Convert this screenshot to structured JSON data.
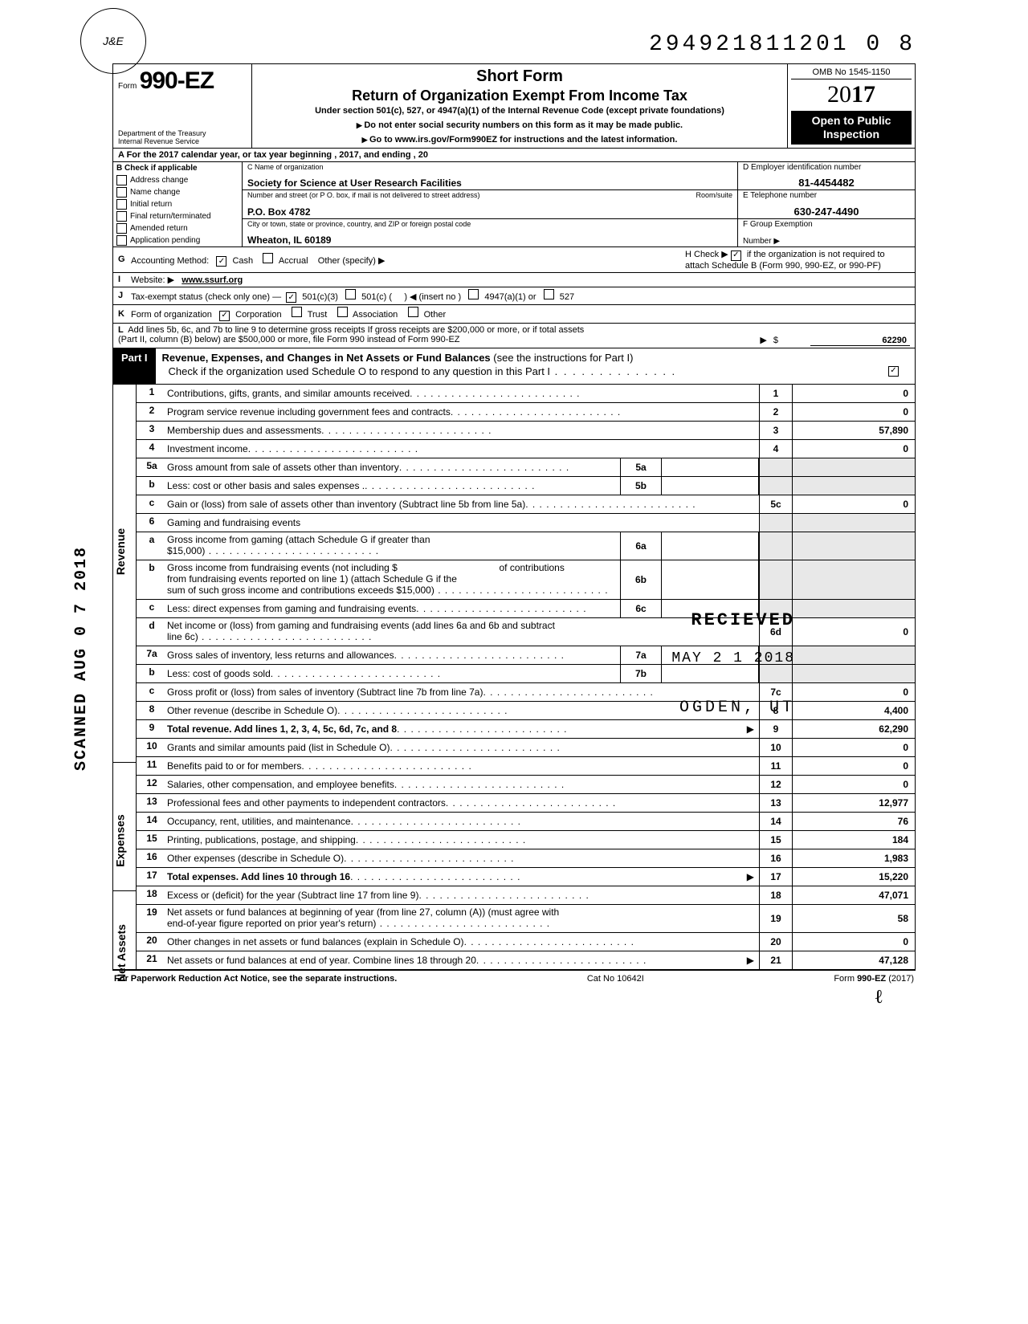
{
  "top_number": "294921811201 0",
  "top_number_trail": "8",
  "logo_text": "J&E",
  "header": {
    "form_word": "Form",
    "form_name": "990-EZ",
    "dept1": "Department of the Treasury",
    "dept2": "Internal Revenue Service",
    "title1": "Short Form",
    "title2": "Return of Organization Exempt From Income Tax",
    "subtitle": "Under section 501(c), 527, or 4947(a)(1) of the Internal Revenue Code (except private foundations)",
    "note1": "Do not enter social security numbers on this form as it may be made public.",
    "note2": "Go to www.irs.gov/Form990EZ for instructions and the latest information.",
    "omb": "OMB No 1545-1150",
    "year_prefix": "20",
    "year_bold": "17",
    "open_pub1": "Open to Public",
    "open_pub2": "Inspection"
  },
  "sectionA": "A  For the 2017 calendar year, or tax year beginning                                                    , 2017, and ending                                    , 20",
  "colB": {
    "title": "B  Check if applicable",
    "items": [
      "Address change",
      "Name change",
      "Initial return",
      "Final return/terminated",
      "Amended return",
      "Application pending"
    ]
  },
  "colC": {
    "c_label": "C  Name of organization",
    "c_value": "Society for Science at User Research Facilities",
    "addr_label": "Number and street (or P O. box, if mail is not delivered to street address)",
    "room": "Room/suite",
    "addr_value": "P.O. Box 4782",
    "city_label": "City or town, state or province, country, and ZIP or foreign postal code",
    "city_value": "Wheaton, IL 60189"
  },
  "colDEF": {
    "d_label": "D Employer identification number",
    "d_value": "81-4454482",
    "e_label": "E Telephone number",
    "e_value": "630-247-4490",
    "f_label": "F Group Exemption",
    "f_label2": "Number ▶"
  },
  "rowG": {
    "lead": "G",
    "text": "Accounting Method:",
    "cash": "Cash",
    "accrual": "Accrual",
    "other": "Other (specify) ▶"
  },
  "rowH": {
    "text": "H  Check ▶",
    "chk": "✓",
    "rest": "if the organization is not required to attach Schedule B (Form 990, 990-EZ, or 990-PF)"
  },
  "rowI": {
    "lead": "I",
    "text": "Website: ▶",
    "value": "www.ssurf.org"
  },
  "rowJ": {
    "lead": "J",
    "text": "Tax-exempt status (check only one) —",
    "a": "501(c)(3)",
    "b": "501(c) (",
    "b2": ")  ◀ (insert no )",
    "c": "4947(a)(1) or",
    "d": "527"
  },
  "rowK": {
    "lead": "K",
    "text": "Form of organization",
    "a": "Corporation",
    "b": "Trust",
    "c": "Association",
    "d": "Other"
  },
  "rowL": {
    "lead": "L",
    "line1": "Add lines 5b, 6c, and 7b to line 9 to determine gross receipts  If gross receipts are $200,000 or more, or if total assets",
    "line2": "(Part II, column (B) below) are $500,000 or more, file Form 990 instead of Form 990-EZ",
    "amount": "62290"
  },
  "part1": {
    "tag": "Part I",
    "title_b": "Revenue, Expenses, and Changes in Net Assets or Fund Balances",
    "title_rest": " (see the instructions for Part I)",
    "check_line": "Check if the organization used Schedule O to respond to any question in this Part I"
  },
  "lines": {
    "l1": {
      "n": "1",
      "d": "Contributions, gifts, grants, and similar amounts received",
      "r": "1",
      "v": "0"
    },
    "l2": {
      "n": "2",
      "d": "Program service revenue including government fees and contracts",
      "r": "2",
      "v": "0"
    },
    "l3": {
      "n": "3",
      "d": "Membership dues and assessments",
      "r": "3",
      "v": "57,890"
    },
    "l4": {
      "n": "4",
      "d": "Investment income",
      "r": "4",
      "v": "0"
    },
    "l5a": {
      "n": "5a",
      "d": "Gross amount from sale of assets other than inventory",
      "m": "5a"
    },
    "l5b": {
      "n": "b",
      "d": "Less: cost or other basis and sales expenses .",
      "m": "5b"
    },
    "l5c": {
      "n": "c",
      "d": "Gain or (loss) from sale of assets other than inventory (Subtract line 5b from line 5a)",
      "r": "5c",
      "v": "0"
    },
    "l6": {
      "n": "6",
      "d": "Gaming and fundraising events"
    },
    "l6a": {
      "n": "a",
      "d1": "Gross income from gaming (attach Schedule G if greater than",
      "d2": "$15,000)",
      "m": "6a"
    },
    "l6b": {
      "n": "b",
      "d1": "Gross income from fundraising events (not including  $",
      "d1b": "of contributions",
      "d2": "from fundraising events reported on line 1) (attach Schedule G if the",
      "d3": "sum of such gross income and contributions exceeds $15,000)",
      "m": "6b"
    },
    "l6c": {
      "n": "c",
      "d": "Less: direct expenses from gaming and fundraising events",
      "m": "6c"
    },
    "l6d": {
      "n": "d",
      "d1": "Net income or (loss) from gaming and fundraising events (add lines 6a and 6b and subtract",
      "d2": "line 6c)",
      "r": "6d",
      "v": "0"
    },
    "l7a": {
      "n": "7a",
      "d": "Gross sales of inventory, less returns and allowances",
      "m": "7a"
    },
    "l7b": {
      "n": "b",
      "d": "Less: cost of goods sold",
      "m": "7b"
    },
    "l7c": {
      "n": "c",
      "d": "Gross profit or (loss) from sales of inventory (Subtract line 7b from line 7a)",
      "r": "7c",
      "v": "0"
    },
    "l8": {
      "n": "8",
      "d": "Other revenue (describe in Schedule O)",
      "r": "8",
      "v": "4,400"
    },
    "l9": {
      "n": "9",
      "d": "Total revenue. Add lines 1, 2, 3, 4, 5c, 6d, 7c, and 8",
      "r": "9",
      "v": "62,290",
      "bold": true,
      "arrow": true
    },
    "l10": {
      "n": "10",
      "d": "Grants and similar amounts paid (list in Schedule O)",
      "r": "10",
      "v": "0"
    },
    "l11": {
      "n": "11",
      "d": "Benefits paid to or for members",
      "r": "11",
      "v": "0"
    },
    "l12": {
      "n": "12",
      "d": "Salaries, other compensation, and employee benefits",
      "r": "12",
      "v": "0"
    },
    "l13": {
      "n": "13",
      "d": "Professional fees and other payments to independent contractors",
      "r": "13",
      "v": "12,977"
    },
    "l14": {
      "n": "14",
      "d": "Occupancy, rent, utilities, and maintenance",
      "r": "14",
      "v": "76"
    },
    "l15": {
      "n": "15",
      "d": "Printing, publications, postage, and shipping",
      "r": "15",
      "v": "184"
    },
    "l16": {
      "n": "16",
      "d": "Other expenses (describe in Schedule O)",
      "r": "16",
      "v": "1,983"
    },
    "l17": {
      "n": "17",
      "d": "Total expenses. Add lines 10 through 16",
      "r": "17",
      "v": "15,220",
      "bold": true,
      "arrow": true
    },
    "l18": {
      "n": "18",
      "d": "Excess or (deficit) for the year (Subtract line 17 from line 9)",
      "r": "18",
      "v": "47,071"
    },
    "l19": {
      "n": "19",
      "d1": "Net assets or fund balances at beginning of year (from line 27, column (A)) (must agree with",
      "d2": "end-of-year figure reported on prior year's return)",
      "r": "19",
      "v": "58"
    },
    "l20": {
      "n": "20",
      "d": "Other changes in net assets or fund balances (explain in Schedule O)",
      "r": "20",
      "v": "0"
    },
    "l21": {
      "n": "21",
      "d": "Net assets or fund balances at end of year. Combine lines 18 through 20",
      "r": "21",
      "v": "47,128",
      "arrow": true
    }
  },
  "side": {
    "rev": "Revenue",
    "exp": "Expenses",
    "na": "Net Assets"
  },
  "stamps": {
    "recv": "RECIEVED",
    "date": "MAY 2 1 2018",
    "ogden": "OGDEN, UT",
    "scanned": "SCANNED AUG 0 7 2018"
  },
  "footer": {
    "left": "For Paperwork Reduction Act Notice, see the separate instructions.",
    "mid": "Cat No 10642I",
    "right": "Form 990-EZ (2017)"
  }
}
